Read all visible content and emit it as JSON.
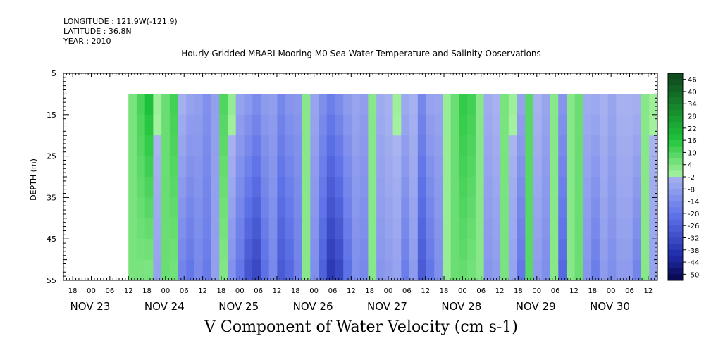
{
  "header": {
    "longitude": "LONGITUDE : 121.9W(-121.9)",
    "latitude": "LATITUDE : 36.8N",
    "year": "YEAR : 2010"
  },
  "chart_data": {
    "type": "heatmap",
    "title": "Hourly Gridded MBARI Mooring M0 Sea Water Temperature and Salinity Observations",
    "xlabel": "V Component of Water Velocity (cm s-1)",
    "ylabel": "DEPTH (m)",
    "y_range": [
      5,
      55
    ],
    "y_inverted": true,
    "y_ticks": [
      "5",
      "15",
      "25",
      "35",
      "45",
      "55"
    ],
    "data_depth_range": [
      10,
      55
    ],
    "x_range_hours_label": "2010-11-22T15:00 to 2010-11-30T15:00",
    "x_hour_ticks": [
      "18",
      "00",
      "06",
      "12",
      "18",
      "00",
      "06",
      "12",
      "18",
      "00",
      "06",
      "12",
      "18",
      "00",
      "06",
      "12",
      "18",
      "00",
      "06",
      "12",
      "18",
      "00",
      "06",
      "12",
      "18",
      "00",
      "06",
      "12",
      "18",
      "00",
      "06",
      "12"
    ],
    "x_day_labels": [
      "NOV 23",
      "NOV 24",
      "NOV 25",
      "NOV 26",
      "NOV 27",
      "NOV 28",
      "NOV 29",
      "NOV 30"
    ],
    "colorbar": {
      "levels": [
        "46",
        "40",
        "34",
        "28",
        "22",
        "16",
        "10",
        "4",
        "-2",
        "-8",
        "-14",
        "-20",
        "-26",
        "-32",
        "-38",
        "-44",
        "-50"
      ],
      "range": [
        -50,
        52
      ],
      "colors": {
        "pos_high": "#0f4d1f",
        "pos_mid": "#1ec43a",
        "pos_low": "#a6f2a0",
        "neg_low": "#aab4f0",
        "neg_mid": "#5e72e8",
        "neg_high": "#1e2aa8",
        "neg_max": "#0b0b55"
      }
    },
    "series": [
      {
        "x_hours": [
          0,
          3,
          6,
          9,
          12,
          15,
          18,
          21,
          24,
          27,
          30,
          33,
          36,
          39,
          42,
          45,
          48,
          51,
          54,
          57,
          60,
          63,
          66,
          69,
          72,
          75,
          78,
          81,
          84,
          87,
          90,
          93,
          96,
          99,
          102,
          105,
          108,
          111,
          114,
          117,
          120,
          123,
          126,
          129,
          132,
          135,
          138,
          141,
          144,
          147,
          150,
          153,
          156,
          159,
          162,
          165,
          168,
          171,
          174,
          177,
          180,
          183,
          186,
          189,
          192
        ],
        "v_cm_s": [
          6,
          9,
          12,
          -2,
          8,
          10,
          -8,
          -12,
          -10,
          -14,
          -6,
          8,
          -4,
          -12,
          -18,
          -22,
          -14,
          -10,
          -20,
          -16,
          -12,
          4,
          -8,
          -18,
          -26,
          -22,
          -14,
          -8,
          -10,
          4,
          -6,
          -4,
          -2,
          -10,
          -4,
          -20,
          -12,
          -8,
          2,
          8,
          12,
          10,
          4,
          -6,
          -4,
          6,
          -2,
          -12,
          10,
          -4,
          -8,
          4,
          -16,
          4,
          8,
          -6,
          -10,
          -4,
          -8,
          -4,
          -4,
          -8,
          4,
          -2,
          -4
        ],
        "depth_modulation": [
          0,
          1,
          2,
          1,
          0,
          1,
          2,
          2,
          1,
          1,
          0,
          1,
          2,
          2,
          3,
          3,
          2,
          1,
          2,
          2,
          1,
          0,
          1,
          2,
          3,
          3,
          2,
          1,
          1,
          0,
          1,
          1,
          1,
          2,
          1,
          2,
          2,
          1,
          0,
          0,
          1,
          1,
          0,
          1,
          1,
          0,
          1,
          2,
          0,
          1,
          1,
          0,
          2,
          0,
          0,
          1,
          2,
          1,
          1,
          1,
          1,
          2,
          0,
          1,
          1
        ]
      }
    ]
  }
}
